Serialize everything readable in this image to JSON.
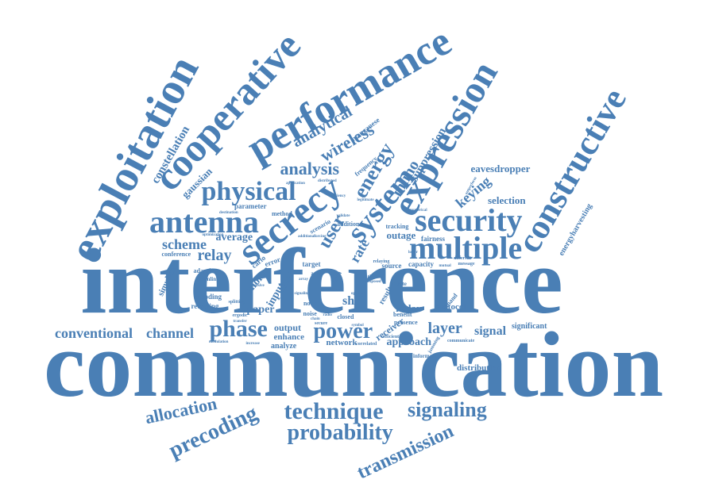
{
  "color": "#4a7fb5",
  "words": [
    {
      "text": "interference"
    },
    {
      "text": "communication"
    },
    {
      "text": "exploitation"
    },
    {
      "text": "cooperative"
    },
    {
      "text": "performance"
    },
    {
      "text": "expression"
    },
    {
      "text": "constructive"
    },
    {
      "text": "security"
    },
    {
      "text": "secrecy"
    },
    {
      "text": "system"
    },
    {
      "text": "multiple"
    },
    {
      "text": "antenna"
    },
    {
      "text": "physical"
    },
    {
      "text": "analysis"
    },
    {
      "text": "wireless"
    },
    {
      "text": "analytical"
    },
    {
      "text": "energy"
    },
    {
      "text": "user"
    },
    {
      "text": "mimo"
    },
    {
      "text": "suppression"
    },
    {
      "text": "keying"
    },
    {
      "text": "selection"
    },
    {
      "text": "eavesdropper"
    },
    {
      "text": "constellation"
    },
    {
      "text": "gaussian"
    },
    {
      "text": "scheme"
    },
    {
      "text": "average"
    },
    {
      "text": "relay"
    },
    {
      "text": "rate"
    },
    {
      "text": "outage"
    },
    {
      "text": "technique"
    },
    {
      "text": "signaling"
    },
    {
      "text": "probability"
    },
    {
      "text": "precoding"
    },
    {
      "text": "allocation"
    },
    {
      "text": "transmission"
    },
    {
      "text": "conventional"
    },
    {
      "text": "channel"
    },
    {
      "text": "phase"
    },
    {
      "text": "power"
    },
    {
      "text": "layer"
    },
    {
      "text": "signal"
    },
    {
      "text": "shift"
    },
    {
      "text": "radar"
    },
    {
      "text": "approach"
    },
    {
      "text": "network"
    },
    {
      "text": "receiver"
    },
    {
      "text": "distribution"
    },
    {
      "text": "significant"
    },
    {
      "text": "energyharvesting"
    },
    {
      "text": "simulation"
    },
    {
      "text": "monte"
    },
    {
      "text": "input"
    },
    {
      "text": "miso"
    },
    {
      "text": "paper"
    },
    {
      "text": "output"
    },
    {
      "text": "enhance"
    },
    {
      "text": "analyze"
    },
    {
      "text": "conference"
    },
    {
      "text": "adaptive"
    },
    {
      "text": "downlink"
    },
    {
      "text": "encoding"
    },
    {
      "text": "receiving"
    },
    {
      "text": "parameter"
    },
    {
      "text": "method"
    },
    {
      "text": "error"
    },
    {
      "text": "target"
    },
    {
      "text": "addition"
    },
    {
      "text": "fairness"
    },
    {
      "text": "tracking"
    },
    {
      "text": "capacity"
    },
    {
      "text": "source"
    },
    {
      "text": "result"
    },
    {
      "text": "protocol"
    },
    {
      "text": "frequency"
    },
    {
      "text": "manganese"
    },
    {
      "text": "carlo"
    },
    {
      "text": "scenario"
    },
    {
      "text": "node"
    },
    {
      "text": "noise"
    },
    {
      "text": "zero"
    },
    {
      "text": "ratio"
    },
    {
      "text": "benefit"
    },
    {
      "text": "presence"
    },
    {
      "text": "private"
    },
    {
      "text": "demand"
    },
    {
      "text": "information"
    },
    {
      "text": "message"
    },
    {
      "text": "different"
    },
    {
      "text": "communicate"
    },
    {
      "text": "efficient"
    },
    {
      "text": "correlated"
    },
    {
      "text": "jamming"
    },
    {
      "text": "secure"
    },
    {
      "text": "term"
    },
    {
      "text": "closed"
    },
    {
      "text": "splitting"
    },
    {
      "text": "ergodic"
    },
    {
      "text": "transfer"
    },
    {
      "text": "validate"
    },
    {
      "text": "legitimate"
    },
    {
      "text": "numerical"
    },
    {
      "text": "efficiency"
    },
    {
      "text": "application"
    },
    {
      "text": "distributed"
    },
    {
      "text": "functional"
    },
    {
      "text": "increase"
    },
    {
      "text": "modulation"
    },
    {
      "text": "symbol"
    },
    {
      "text": "chain"
    },
    {
      "text": "radio"
    },
    {
      "text": "destination"
    },
    {
      "text": "optimization"
    },
    {
      "text": "outperform"
    },
    {
      "text": "relaying"
    },
    {
      "text": "additional"
    },
    {
      "text": "forcing"
    },
    {
      "text": "passive"
    },
    {
      "text": "array"
    },
    {
      "text": "proposed"
    },
    {
      "text": "signaling"
    },
    {
      "text": "minimum"
    },
    {
      "text": "optimal"
    },
    {
      "text": "mutual"
    },
    {
      "text": "lower"
    }
  ]
}
